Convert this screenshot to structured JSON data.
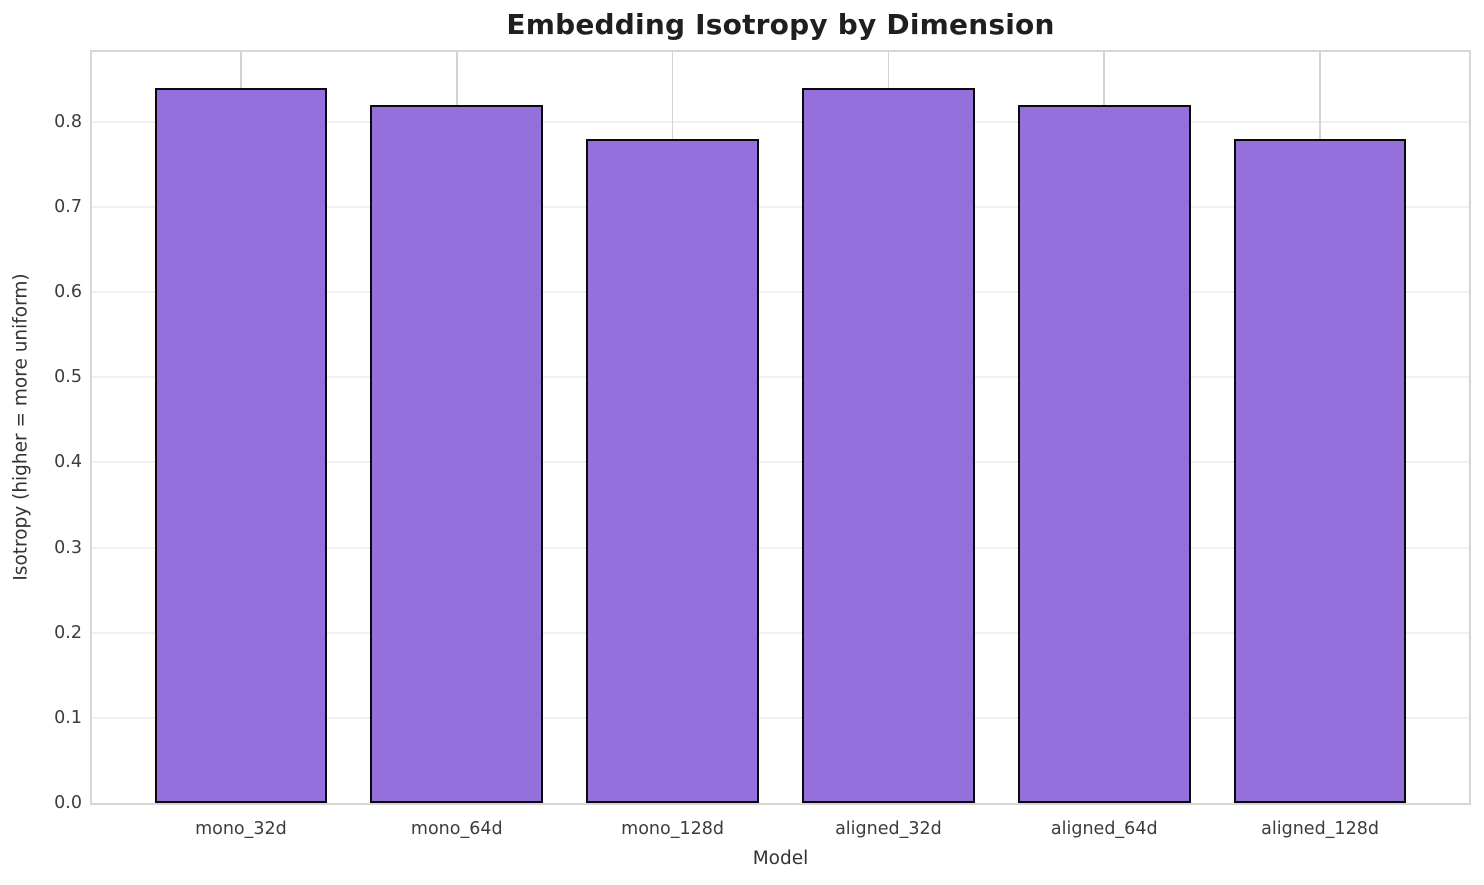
{
  "chart_data": {
    "type": "bar",
    "title": "Embedding Isotropy by Dimension",
    "xlabel": "Model",
    "ylabel": "Isotropy (higher = more uniform)",
    "categories": [
      "mono_32d",
      "mono_64d",
      "mono_128d",
      "aligned_32d",
      "aligned_64d",
      "aligned_128d"
    ],
    "values": [
      0.84,
      0.82,
      0.78,
      0.84,
      0.82,
      0.78
    ],
    "yticks": [
      0.0,
      0.1,
      0.2,
      0.3,
      0.4,
      0.5,
      0.6,
      0.7,
      0.8
    ],
    "ytick_labels": [
      "0.0",
      "0.1",
      "0.2",
      "0.3",
      "0.4",
      "0.5",
      "0.6",
      "0.7",
      "0.8"
    ],
    "ylim": [
      0,
      0.882
    ],
    "xlim": [
      -0.69,
      5.69
    ],
    "bar_width": 0.8,
    "grid": true,
    "legend_position": "none",
    "bar_color": "#9370DB",
    "bar_edge_color": "#0a0a0a"
  }
}
